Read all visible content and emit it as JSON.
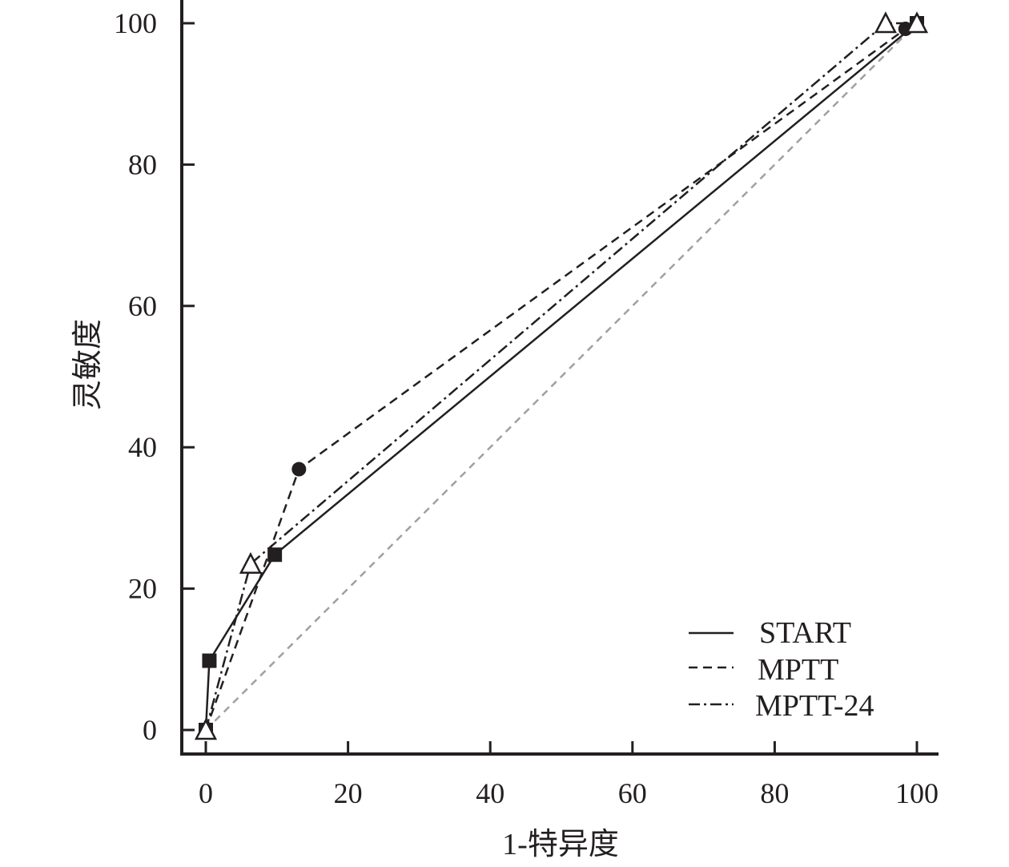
{
  "chart_data": {
    "type": "line",
    "title": "",
    "xlabel": "1-特异度",
    "ylabel": "灵敏度",
    "xlim": [
      0,
      100
    ],
    "ylim": [
      0,
      100
    ],
    "x_ticks": [
      "0",
      "20",
      "40",
      "60",
      "80",
      "100"
    ],
    "y_ticks": [
      "0",
      "20",
      "40",
      "60",
      "80",
      "100"
    ],
    "grid": false,
    "legend_position": "bottom-right",
    "reference_line": {
      "x": [
        0,
        100
      ],
      "y": [
        0,
        100
      ],
      "style": "dashed",
      "color": "#a0a0a0"
    },
    "series": [
      {
        "name": "START",
        "style": "solid",
        "marker": "filled-square",
        "color": "#231f20",
        "x": [
          0,
          0.5,
          9.7,
          100
        ],
        "y": [
          0,
          9.8,
          24.8,
          100
        ]
      },
      {
        "name": "MPTT",
        "style": "dashed",
        "marker": "filled-circle",
        "color": "#231f20",
        "x": [
          0,
          13.1,
          98.4,
          100
        ],
        "y": [
          0,
          36.9,
          99.2,
          100
        ]
      },
      {
        "name": "MPTT-24",
        "style": "dash-dot",
        "marker": "open-triangle",
        "color": "#231f20",
        "x": [
          0,
          6.3,
          95.6,
          100
        ],
        "y": [
          0,
          23.5,
          100,
          100
        ]
      }
    ]
  }
}
